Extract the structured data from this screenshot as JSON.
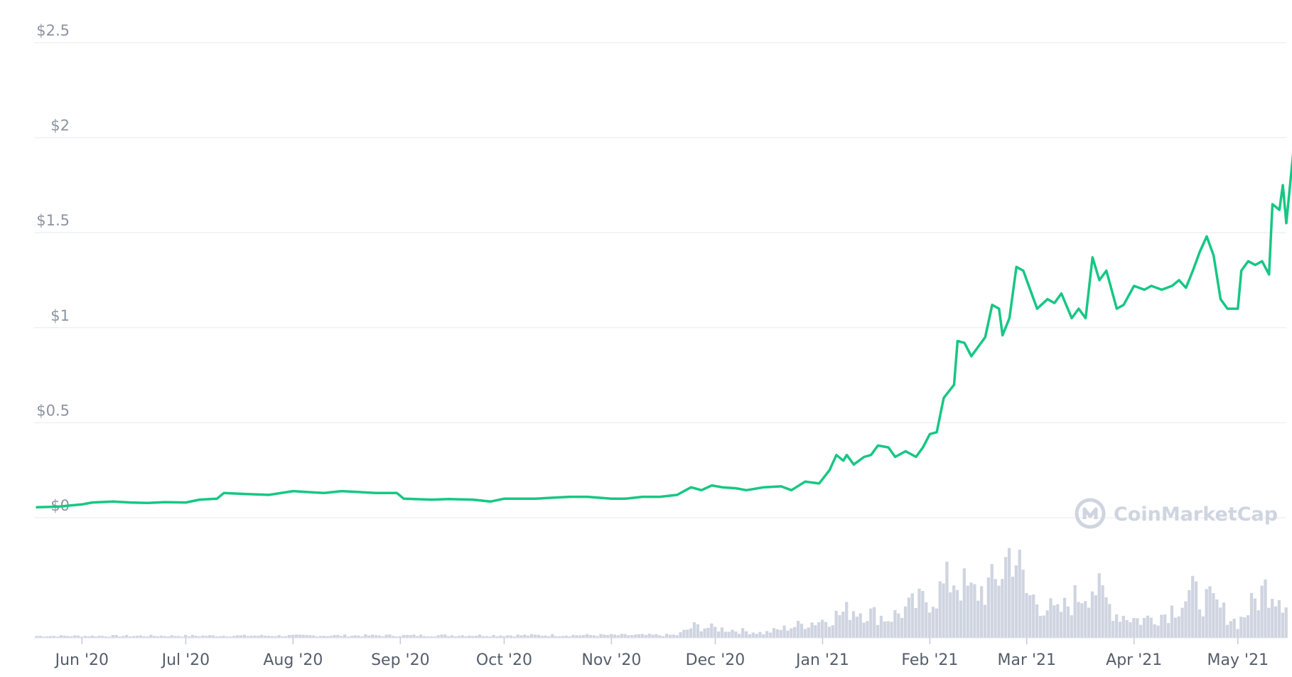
{
  "chart_data": {
    "type": "line",
    "y_axis": {
      "min": 0,
      "max": 2.5,
      "ticks": [
        {
          "value": 0,
          "label": "$0"
        },
        {
          "value": 0.5,
          "label": "$0.5"
        },
        {
          "value": 1,
          "label": "$1"
        },
        {
          "value": 1.5,
          "label": "$1.5"
        },
        {
          "value": 2,
          "label": "$2"
        },
        {
          "value": 2.5,
          "label": "$2.5"
        }
      ]
    },
    "x_axis": {
      "start": "2020-05-19",
      "end": "2021-05-15",
      "ticks": [
        {
          "date": "2020-06-01",
          "label": "Jun '20"
        },
        {
          "date": "2020-07-01",
          "label": "Jul '20"
        },
        {
          "date": "2020-08-01",
          "label": "Aug '20"
        },
        {
          "date": "2020-09-01",
          "label": "Sep '20"
        },
        {
          "date": "2020-10-01",
          "label": "Oct '20"
        },
        {
          "date": "2020-11-01",
          "label": "Nov '20"
        },
        {
          "date": "2020-12-01",
          "label": "Dec '20"
        },
        {
          "date": "2021-01-01",
          "label": "Jan '21"
        },
        {
          "date": "2021-02-01",
          "label": "Feb '21"
        },
        {
          "date": "2021-03-01",
          "label": "Mar '21"
        },
        {
          "date": "2021-04-01",
          "label": "Apr '21"
        },
        {
          "date": "2021-05-01",
          "label": "May '21"
        }
      ]
    },
    "series": [
      {
        "color": "#16c784",
        "points": [
          [
            "2020-05-19",
            0.055
          ],
          [
            "2020-05-25",
            0.058
          ],
          [
            "2020-06-01",
            0.07
          ],
          [
            "2020-06-04",
            0.08
          ],
          [
            "2020-06-10",
            0.085
          ],
          [
            "2020-06-15",
            0.08
          ],
          [
            "2020-06-20",
            0.078
          ],
          [
            "2020-06-25",
            0.082
          ],
          [
            "2020-07-01",
            0.08
          ],
          [
            "2020-07-05",
            0.095
          ],
          [
            "2020-07-10",
            0.1
          ],
          [
            "2020-07-12",
            0.13
          ],
          [
            "2020-07-18",
            0.125
          ],
          [
            "2020-07-25",
            0.12
          ],
          [
            "2020-08-01",
            0.14
          ],
          [
            "2020-08-05",
            0.135
          ],
          [
            "2020-08-10",
            0.13
          ],
          [
            "2020-08-15",
            0.14
          ],
          [
            "2020-08-20",
            0.135
          ],
          [
            "2020-08-25",
            0.13
          ],
          [
            "2020-08-31",
            0.13
          ],
          [
            "2020-09-02",
            0.1
          ],
          [
            "2020-09-10",
            0.095
          ],
          [
            "2020-09-15",
            0.098
          ],
          [
            "2020-09-22",
            0.095
          ],
          [
            "2020-09-27",
            0.085
          ],
          [
            "2020-10-01",
            0.1
          ],
          [
            "2020-10-05",
            0.1
          ],
          [
            "2020-10-10",
            0.1
          ],
          [
            "2020-10-15",
            0.105
          ],
          [
            "2020-10-20",
            0.11
          ],
          [
            "2020-10-25",
            0.11
          ],
          [
            "2020-11-01",
            0.1
          ],
          [
            "2020-11-05",
            0.1
          ],
          [
            "2020-11-10",
            0.11
          ],
          [
            "2020-11-15",
            0.11
          ],
          [
            "2020-11-20",
            0.12
          ],
          [
            "2020-11-24",
            0.16
          ],
          [
            "2020-11-27",
            0.145
          ],
          [
            "2020-11-30",
            0.17
          ],
          [
            "2020-12-03",
            0.16
          ],
          [
            "2020-12-07",
            0.155
          ],
          [
            "2020-12-10",
            0.145
          ],
          [
            "2020-12-15",
            0.16
          ],
          [
            "2020-12-20",
            0.165
          ],
          [
            "2020-12-23",
            0.145
          ],
          [
            "2020-12-27",
            0.19
          ],
          [
            "2020-12-31",
            0.18
          ],
          [
            "2021-01-03",
            0.25
          ],
          [
            "2021-01-05",
            0.33
          ],
          [
            "2021-01-07",
            0.3
          ],
          [
            "2021-01-08",
            0.33
          ],
          [
            "2021-01-10",
            0.28
          ],
          [
            "2021-01-13",
            0.32
          ],
          [
            "2021-01-15",
            0.33
          ],
          [
            "2021-01-17",
            0.38
          ],
          [
            "2021-01-20",
            0.37
          ],
          [
            "2021-01-22",
            0.32
          ],
          [
            "2021-01-25",
            0.35
          ],
          [
            "2021-01-28",
            0.32
          ],
          [
            "2021-01-30",
            0.37
          ],
          [
            "2021-02-01",
            0.44
          ],
          [
            "2021-02-03",
            0.45
          ],
          [
            "2021-02-05",
            0.63
          ],
          [
            "2021-02-08",
            0.7
          ],
          [
            "2021-02-09",
            0.93
          ],
          [
            "2021-02-11",
            0.92
          ],
          [
            "2021-02-13",
            0.85
          ],
          [
            "2021-02-17",
            0.95
          ],
          [
            "2021-02-19",
            1.12
          ],
          [
            "2021-02-21",
            1.1
          ],
          [
            "2021-02-22",
            0.96
          ],
          [
            "2021-02-24",
            1.05
          ],
          [
            "2021-02-26",
            1.32
          ],
          [
            "2021-02-28",
            1.3
          ],
          [
            "2021-03-02",
            1.2
          ],
          [
            "2021-03-04",
            1.1
          ],
          [
            "2021-03-07",
            1.15
          ],
          [
            "2021-03-09",
            1.13
          ],
          [
            "2021-03-11",
            1.18
          ],
          [
            "2021-03-14",
            1.05
          ],
          [
            "2021-03-16",
            1.1
          ],
          [
            "2021-03-18",
            1.05
          ],
          [
            "2021-03-20",
            1.37
          ],
          [
            "2021-03-22",
            1.25
          ],
          [
            "2021-03-24",
            1.3
          ],
          [
            "2021-03-27",
            1.1
          ],
          [
            "2021-03-29",
            1.12
          ],
          [
            "2021-04-01",
            1.22
          ],
          [
            "2021-04-04",
            1.2
          ],
          [
            "2021-04-06",
            1.22
          ],
          [
            "2021-04-09",
            1.2
          ],
          [
            "2021-04-12",
            1.22
          ],
          [
            "2021-04-14",
            1.25
          ],
          [
            "2021-04-16",
            1.21
          ],
          [
            "2021-04-18",
            1.3
          ],
          [
            "2021-04-20",
            1.4
          ],
          [
            "2021-04-22",
            1.48
          ],
          [
            "2021-04-24",
            1.38
          ],
          [
            "2021-04-26",
            1.15
          ],
          [
            "2021-04-28",
            1.1
          ],
          [
            "2021-05-01",
            1.1
          ],
          [
            "2021-05-02",
            1.3
          ],
          [
            "2021-05-04",
            1.35
          ],
          [
            "2021-05-06",
            1.33
          ],
          [
            "2021-05-08",
            1.35
          ],
          [
            "2021-05-10",
            1.28
          ],
          [
            "2021-05-11",
            1.65
          ],
          [
            "2021-05-13",
            1.62
          ],
          [
            "2021-05-14",
            1.75
          ],
          [
            "2021-05-15",
            1.55
          ],
          [
            "2021-05-17",
            1.92
          ],
          [
            "2021-05-18",
            1.87
          ]
        ]
      }
    ],
    "volume": {
      "color": "#cfd4e1",
      "points": [
        [
          "2020-05-19",
          0.02
        ],
        [
          "2020-11-20",
          0.03
        ],
        [
          "2020-11-25",
          0.12
        ],
        [
          "2020-12-15",
          0.05
        ],
        [
          "2021-01-03",
          0.2
        ],
        [
          "2021-01-10",
          0.3
        ],
        [
          "2021-01-20",
          0.2
        ],
        [
          "2021-02-03",
          0.45
        ],
        [
          "2021-02-08",
          0.62
        ],
        [
          "2021-02-13",
          0.45
        ],
        [
          "2021-02-20",
          0.55
        ],
        [
          "2021-02-25",
          0.95
        ],
        [
          "2021-03-01",
          0.45
        ],
        [
          "2021-03-10",
          0.25
        ],
        [
          "2021-03-20",
          0.55
        ],
        [
          "2021-03-27",
          0.25
        ],
        [
          "2021-04-03",
          0.18
        ],
        [
          "2021-04-10",
          0.25
        ],
        [
          "2021-04-18",
          0.45
        ],
        [
          "2021-04-24",
          0.35
        ],
        [
          "2021-05-01",
          0.15
        ],
        [
          "2021-05-10",
          0.55
        ],
        [
          "2021-05-15",
          0.4
        ],
        [
          "2021-05-18",
          0.8
        ]
      ]
    },
    "grid": true,
    "legend": "none"
  },
  "watermark": {
    "text": "CoinMarketCap"
  }
}
